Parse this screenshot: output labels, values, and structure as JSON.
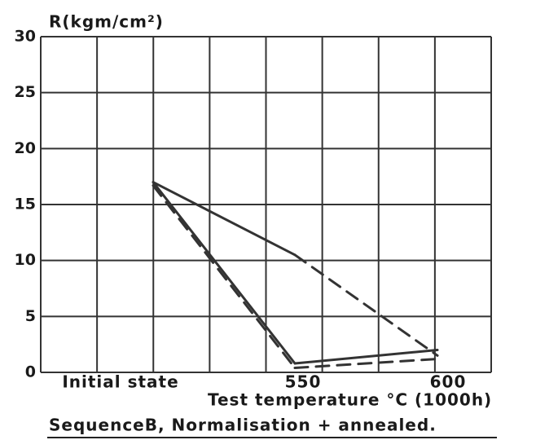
{
  "chart_data": {
    "type": "line",
    "ylabel": "R(kgm/cm²)",
    "xlabel": "Test temperature °C (1000h)",
    "caption": "SequenceB, Normalisation + annealed.",
    "categories": [
      "Initial state",
      "550",
      "600"
    ],
    "ylim": [
      0,
      30
    ],
    "yticks": [
      0,
      5,
      10,
      15,
      20,
      25,
      30
    ],
    "grid": true,
    "series": [
      {
        "color": "#333333",
        "values": [
          17,
          0.8,
          2
        ],
        "segment_dashed": [
          false,
          false
        ]
      },
      {
        "color": "#333333",
        "values": [
          16.7,
          0.4,
          1.2
        ],
        "segment_dashed": [
          true,
          true
        ]
      },
      {
        "color": "#333333",
        "values": [
          17,
          10.5,
          1.5
        ],
        "segment_dashed": [
          false,
          true
        ]
      }
    ]
  }
}
